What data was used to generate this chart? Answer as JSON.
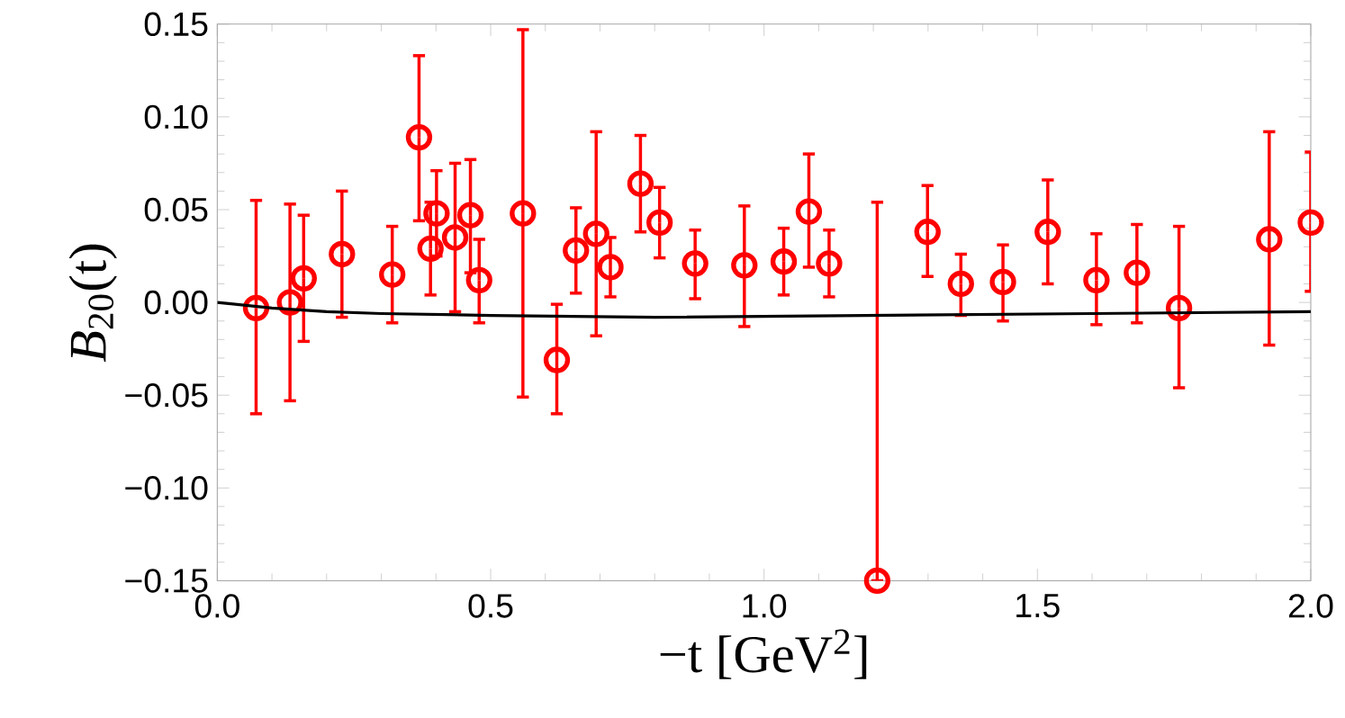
{
  "chart_data": {
    "type": "scatter",
    "xlabel": "−t [GeV$^{2}$]",
    "ylabel": "*B*$_{20}$(t)",
    "xlim": [
      0,
      2
    ],
    "ylim": [
      -0.15,
      0.15
    ],
    "xticks": [
      {
        "value": 0,
        "label": "0.0"
      },
      {
        "value": 0.5,
        "label": "0.5"
      },
      {
        "value": 1,
        "label": "1.0"
      },
      {
        "value": 1.5,
        "label": "1.5"
      },
      {
        "value": 2,
        "label": "2.0"
      }
    ],
    "yticks": [
      {
        "value": -0.15,
        "label": "−0.15"
      },
      {
        "value": -0.1,
        "label": "−0.10"
      },
      {
        "value": -0.05,
        "label": "−0.05"
      },
      {
        "value": 0,
        "label": "0.00"
      },
      {
        "value": 0.05,
        "label": "0.05"
      },
      {
        "value": 0.1,
        "label": "0.10"
      },
      {
        "value": 0.15,
        "label": "0.15"
      }
    ],
    "grid": false,
    "series": [
      {
        "color": "#ff0000",
        "marker": "circle",
        "x": [
          0.071,
          0.133,
          0.158,
          0.228,
          0.32,
          0.369,
          0.39,
          0.401,
          0.435,
          0.463,
          0.479,
          0.559,
          0.621,
          0.656,
          0.693,
          0.719,
          0.774,
          0.809,
          0.874,
          0.964,
          1.036,
          1.082,
          1.119,
          1.207,
          1.299,
          1.36,
          1.437,
          1.519,
          1.608,
          1.682,
          1.759,
          1.924,
          2.0
        ],
        "values": [
          -0.003,
          0.0,
          0.013,
          0.026,
          0.015,
          0.089,
          0.029,
          0.048,
          0.035,
          0.047,
          0.012,
          0.048,
          -0.031,
          0.028,
          0.037,
          0.019,
          0.064,
          0.043,
          0.021,
          0.02,
          0.022,
          0.049,
          0.021,
          -0.15,
          0.038,
          0.01,
          0.011,
          0.038,
          0.012,
          0.016,
          -0.003,
          0.034,
          0.043
        ],
        "errors": [
          [
            -0.06,
            0.055
          ],
          [
            -0.053,
            0.053
          ],
          [
            -0.021,
            0.047
          ],
          [
            -0.008,
            0.06
          ],
          [
            -0.011,
            0.041
          ],
          [
            0.044,
            0.133
          ],
          [
            0.004,
            0.054
          ],
          [
            0.025,
            0.071
          ],
          [
            -0.005,
            0.075
          ],
          [
            0.016,
            0.077
          ],
          [
            -0.011,
            0.034
          ],
          [
            -0.051,
            0.147
          ],
          [
            -0.06,
            -0.001
          ],
          [
            0.005,
            0.051
          ],
          [
            -0.018,
            0.092
          ],
          [
            0.003,
            0.035
          ],
          [
            0.038,
            0.09
          ],
          [
            0.024,
            0.062
          ],
          [
            0.002,
            0.039
          ],
          [
            -0.013,
            0.052
          ],
          [
            0.004,
            0.04
          ],
          [
            0.019,
            0.08
          ],
          [
            0.003,
            0.039
          ],
          [
            -0.15,
            0.054
          ],
          [
            0.014,
            0.063
          ],
          [
            -0.007,
            0.026
          ],
          [
            -0.01,
            0.031
          ],
          [
            0.01,
            0.066
          ],
          [
            -0.012,
            0.037
          ],
          [
            -0.011,
            0.042
          ],
          [
            -0.046,
            0.041
          ],
          [
            -0.023,
            0.092
          ],
          [
            0.006,
            0.081
          ]
        ]
      },
      {
        "type": "line",
        "color": "#000000",
        "marker": "none",
        "line_style": "solid",
        "x": [
          0,
          0.1,
          0.2,
          0.3,
          0.5,
          0.8,
          1.2,
          1.6,
          2.0
        ],
        "values": [
          0,
          -0.003,
          -0.005,
          -0.006,
          -0.007,
          -0.008,
          -0.007,
          -0.006,
          -0.005
        ]
      }
    ]
  }
}
